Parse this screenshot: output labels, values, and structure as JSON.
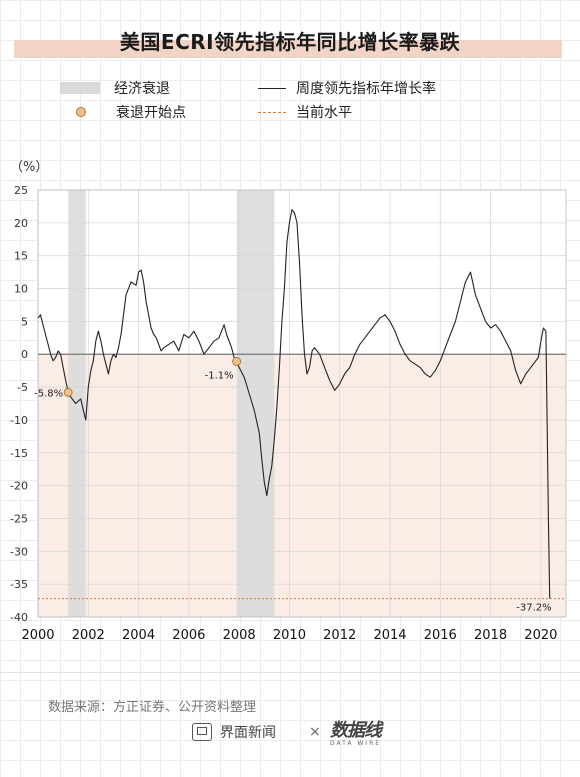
{
  "title": "美国ECRI领先指标年同比增长率暴跌",
  "legend": {
    "recession_label": "经济衰退",
    "start_label": "衰退开始点",
    "series_label": "周度领先指标年增长率",
    "current_label": "当前水平"
  },
  "unit": "（%）",
  "source": "数据来源：方正证券、公开资料整理",
  "brand": {
    "name": "界面新闻",
    "times": "×",
    "logo": "数据线",
    "logo_sub": "DATA WIRE"
  },
  "colors": {
    "line": "#222222",
    "recession_band": "#d9d9d9",
    "negative_area": "#fbece6",
    "current_line": "#e07a2e",
    "start_point": "#f0c088"
  },
  "chart_data": {
    "type": "line",
    "xlim": [
      2000,
      2021
    ],
    "ylim": [
      -40,
      25
    ],
    "x_ticks": [
      "2000",
      "2002",
      "2004",
      "2006",
      "2008",
      "2010",
      "2012",
      "2014",
      "2016",
      "2018",
      "2020"
    ],
    "y_ticks": [
      "25",
      "20",
      "15",
      "10",
      "5",
      "0",
      "-5",
      "-10",
      "-15",
      "-20",
      "-25",
      "-30",
      "-35",
      "-40"
    ],
    "recessions": [
      [
        2001.2,
        2001.9
      ],
      [
        2007.9,
        2009.4
      ]
    ],
    "recession_starts": [
      {
        "x": 2001.2,
        "y": -5.8,
        "label": "-5.8%"
      },
      {
        "x": 2007.9,
        "y": -1.1,
        "label": "-1.1%"
      }
    ],
    "current": {
      "y": -37.2,
      "label": "-37.2%"
    },
    "series": [
      {
        "name": "周度领先指标年增长率",
        "x": [
          2000.0,
          2000.1,
          2000.2,
          2000.3,
          2000.4,
          2000.5,
          2000.6,
          2000.7,
          2000.8,
          2000.9,
          2001.0,
          2001.1,
          2001.2,
          2001.3,
          2001.5,
          2001.7,
          2001.8,
          2001.9,
          2002.0,
          2002.1,
          2002.2,
          2002.3,
          2002.4,
          2002.5,
          2002.6,
          2002.7,
          2002.8,
          2002.9,
          2003.0,
          2003.1,
          2003.2,
          2003.3,
          2003.4,
          2003.5,
          2003.7,
          2003.9,
          2004.0,
          2004.1,
          2004.2,
          2004.3,
          2004.4,
          2004.5,
          2004.6,
          2004.7,
          2004.8,
          2004.9,
          2005.0,
          2005.2,
          2005.4,
          2005.6,
          2005.8,
          2006.0,
          2006.2,
          2006.4,
          2006.6,
          2006.8,
          2007.0,
          2007.2,
          2007.4,
          2007.5,
          2007.6,
          2007.7,
          2007.8,
          2007.9,
          2008.0,
          2008.2,
          2008.4,
          2008.6,
          2008.8,
          2008.9,
          2009.0,
          2009.1,
          2009.2,
          2009.3,
          2009.4,
          2009.5,
          2009.6,
          2009.7,
          2009.8,
          2009.9,
          2010.0,
          2010.1,
          2010.2,
          2010.3,
          2010.4,
          2010.5,
          2010.6,
          2010.7,
          2010.8,
          2010.9,
          2011.0,
          2011.2,
          2011.4,
          2011.6,
          2011.8,
          2012.0,
          2012.2,
          2012.4,
          2012.6,
          2012.8,
          2013.0,
          2013.2,
          2013.4,
          2013.6,
          2013.8,
          2014.0,
          2014.2,
          2014.4,
          2014.6,
          2014.8,
          2015.0,
          2015.2,
          2015.4,
          2015.6,
          2015.8,
          2016.0,
          2016.2,
          2016.4,
          2016.6,
          2016.8,
          2017.0,
          2017.2,
          2017.4,
          2017.6,
          2017.8,
          2018.0,
          2018.2,
          2018.4,
          2018.6,
          2018.8,
          2019.0,
          2019.2,
          2019.4,
          2019.6,
          2019.8,
          2019.9,
          2020.0,
          2020.1,
          2020.2,
          2020.25,
          2020.3,
          2020.35
        ],
        "values": [
          5.5,
          6.0,
          4.5,
          3.0,
          1.5,
          0.0,
          -1.0,
          -0.5,
          0.5,
          0.0,
          -2.0,
          -4.0,
          -5.8,
          -6.5,
          -7.5,
          -6.8,
          -8.5,
          -10.0,
          -5.0,
          -2.5,
          -1.0,
          2.0,
          3.5,
          2.0,
          0.0,
          -1.5,
          -3.0,
          -1.0,
          0.0,
          -0.5,
          1.0,
          3.0,
          6.0,
          9.0,
          11.0,
          10.5,
          12.5,
          12.8,
          11.0,
          8.0,
          6.0,
          4.0,
          3.0,
          2.5,
          1.5,
          0.5,
          1.0,
          1.5,
          2.0,
          0.5,
          3.0,
          2.5,
          3.5,
          2.0,
          0.0,
          1.0,
          2.0,
          2.5,
          4.5,
          3.0,
          2.0,
          1.0,
          -0.5,
          -1.1,
          -2.0,
          -3.5,
          -6.0,
          -8.5,
          -12.0,
          -16.0,
          -19.5,
          -21.5,
          -19.0,
          -17.0,
          -13.0,
          -8.0,
          -2.0,
          5.0,
          10.0,
          17.0,
          20.0,
          22.0,
          21.5,
          20.0,
          14.0,
          6.0,
          0.0,
          -3.0,
          -2.0,
          0.5,
          1.0,
          0.0,
          -2.0,
          -4.0,
          -5.5,
          -4.5,
          -3.0,
          -2.0,
          0.0,
          1.5,
          2.5,
          3.5,
          4.5,
          5.5,
          6.0,
          5.0,
          3.5,
          1.5,
          0.0,
          -1.0,
          -1.5,
          -2.0,
          -3.0,
          -3.5,
          -2.5,
          -1.0,
          1.0,
          3.0,
          5.0,
          8.0,
          11.0,
          12.5,
          9.0,
          7.0,
          5.0,
          4.0,
          4.5,
          3.5,
          2.0,
          0.5,
          -2.5,
          -4.5,
          -3.0,
          -2.0,
          -1.0,
          -0.5,
          2.0,
          4.0,
          3.5,
          -10.0,
          -25.0,
          -37.2
        ]
      }
    ]
  }
}
